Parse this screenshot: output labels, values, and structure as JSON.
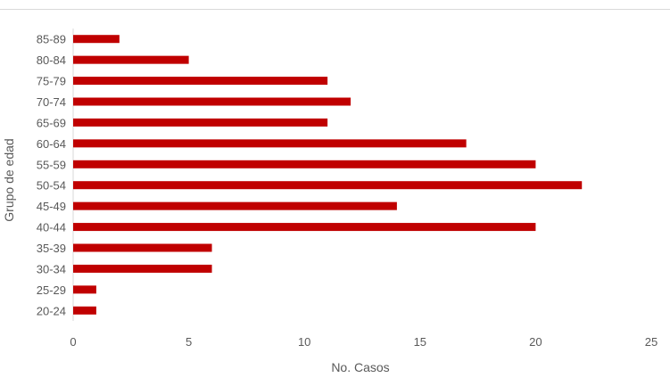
{
  "chart_data": {
    "type": "bar",
    "orientation": "horizontal",
    "categories": [
      "20-24",
      "25-29",
      "30-34",
      "35-39",
      "40-44",
      "45-49",
      "50-54",
      "55-59",
      "60-64",
      "65-69",
      "70-74",
      "75-79",
      "80-84",
      "85-89"
    ],
    "values": [
      1,
      1,
      6,
      6,
      20,
      14,
      22,
      20,
      17,
      11,
      12,
      11,
      5,
      2
    ],
    "xlabel": "No. Casos",
    "ylabel": "Grupo de edad",
    "xlim": [
      0,
      25
    ],
    "xticks": [
      0,
      5,
      10,
      15,
      20,
      25
    ],
    "grid": false,
    "legend": "none",
    "bar_color": "#c00000"
  }
}
